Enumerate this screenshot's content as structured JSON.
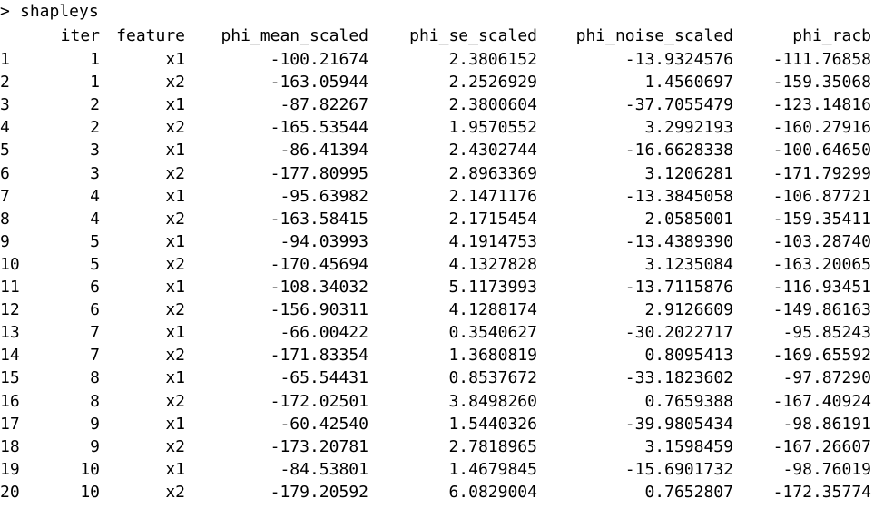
{
  "console": {
    "prompt_symbol": ">",
    "command": "shapleys",
    "columns": [
      "iter",
      "feature",
      "phi_mean_scaled",
      "phi_se_scaled",
      "phi_noise_scaled",
      "phi_racb"
    ],
    "rows": [
      {
        "row": "1",
        "iter": "1",
        "feature": "x1",
        "phi_mean_scaled": "-100.21674",
        "phi_se_scaled": "2.3806152",
        "phi_noise_scaled": "-13.9324576",
        "phi_racb": "-111.76858"
      },
      {
        "row": "2",
        "iter": "1",
        "feature": "x2",
        "phi_mean_scaled": "-163.05944",
        "phi_se_scaled": "2.2526929",
        "phi_noise_scaled": "1.4560697",
        "phi_racb": "-159.35068"
      },
      {
        "row": "3",
        "iter": "2",
        "feature": "x1",
        "phi_mean_scaled": "-87.82267",
        "phi_se_scaled": "2.3800604",
        "phi_noise_scaled": "-37.7055479",
        "phi_racb": "-123.14816"
      },
      {
        "row": "4",
        "iter": "2",
        "feature": "x2",
        "phi_mean_scaled": "-165.53544",
        "phi_se_scaled": "1.9570552",
        "phi_noise_scaled": "3.2992193",
        "phi_racb": "-160.27916"
      },
      {
        "row": "5",
        "iter": "3",
        "feature": "x1",
        "phi_mean_scaled": "-86.41394",
        "phi_se_scaled": "2.4302744",
        "phi_noise_scaled": "-16.6628338",
        "phi_racb": "-100.64650"
      },
      {
        "row": "6",
        "iter": "3",
        "feature": "x2",
        "phi_mean_scaled": "-177.80995",
        "phi_se_scaled": "2.8963369",
        "phi_noise_scaled": "3.1206281",
        "phi_racb": "-171.79299"
      },
      {
        "row": "7",
        "iter": "4",
        "feature": "x1",
        "phi_mean_scaled": "-95.63982",
        "phi_se_scaled": "2.1471176",
        "phi_noise_scaled": "-13.3845058",
        "phi_racb": "-106.87721"
      },
      {
        "row": "8",
        "iter": "4",
        "feature": "x2",
        "phi_mean_scaled": "-163.58415",
        "phi_se_scaled": "2.1715454",
        "phi_noise_scaled": "2.0585001",
        "phi_racb": "-159.35411"
      },
      {
        "row": "9",
        "iter": "5",
        "feature": "x1",
        "phi_mean_scaled": "-94.03993",
        "phi_se_scaled": "4.1914753",
        "phi_noise_scaled": "-13.4389390",
        "phi_racb": "-103.28740"
      },
      {
        "row": "10",
        "iter": "5",
        "feature": "x2",
        "phi_mean_scaled": "-170.45694",
        "phi_se_scaled": "4.1327828",
        "phi_noise_scaled": "3.1235084",
        "phi_racb": "-163.20065"
      },
      {
        "row": "11",
        "iter": "6",
        "feature": "x1",
        "phi_mean_scaled": "-108.34032",
        "phi_se_scaled": "5.1173993",
        "phi_noise_scaled": "-13.7115876",
        "phi_racb": "-116.93451"
      },
      {
        "row": "12",
        "iter": "6",
        "feature": "x2",
        "phi_mean_scaled": "-156.90311",
        "phi_se_scaled": "4.1288174",
        "phi_noise_scaled": "2.9126609",
        "phi_racb": "-149.86163"
      },
      {
        "row": "13",
        "iter": "7",
        "feature": "x1",
        "phi_mean_scaled": "-66.00422",
        "phi_se_scaled": "0.3540627",
        "phi_noise_scaled": "-30.2022717",
        "phi_racb": "-95.85243"
      },
      {
        "row": "14",
        "iter": "7",
        "feature": "x2",
        "phi_mean_scaled": "-171.83354",
        "phi_se_scaled": "1.3680819",
        "phi_noise_scaled": "0.8095413",
        "phi_racb": "-169.65592"
      },
      {
        "row": "15",
        "iter": "8",
        "feature": "x1",
        "phi_mean_scaled": "-65.54431",
        "phi_se_scaled": "0.8537672",
        "phi_noise_scaled": "-33.1823602",
        "phi_racb": "-97.87290"
      },
      {
        "row": "16",
        "iter": "8",
        "feature": "x2",
        "phi_mean_scaled": "-172.02501",
        "phi_se_scaled": "3.8498260",
        "phi_noise_scaled": "0.7659388",
        "phi_racb": "-167.40924"
      },
      {
        "row": "17",
        "iter": "9",
        "feature": "x1",
        "phi_mean_scaled": "-60.42540",
        "phi_se_scaled": "1.5440326",
        "phi_noise_scaled": "-39.9805434",
        "phi_racb": "-98.86191"
      },
      {
        "row": "18",
        "iter": "9",
        "feature": "x2",
        "phi_mean_scaled": "-173.20781",
        "phi_se_scaled": "2.7818965",
        "phi_noise_scaled": "3.1598459",
        "phi_racb": "-167.26607"
      },
      {
        "row": "19",
        "iter": "10",
        "feature": "x1",
        "phi_mean_scaled": "-84.53801",
        "phi_se_scaled": "1.4679845",
        "phi_noise_scaled": "-15.6901732",
        "phi_racb": "-98.76019"
      },
      {
        "row": "20",
        "iter": "10",
        "feature": "x2",
        "phi_mean_scaled": "-179.20592",
        "phi_se_scaled": "6.0829004",
        "phi_noise_scaled": "0.7652807",
        "phi_racb": "-172.35774"
      }
    ]
  }
}
